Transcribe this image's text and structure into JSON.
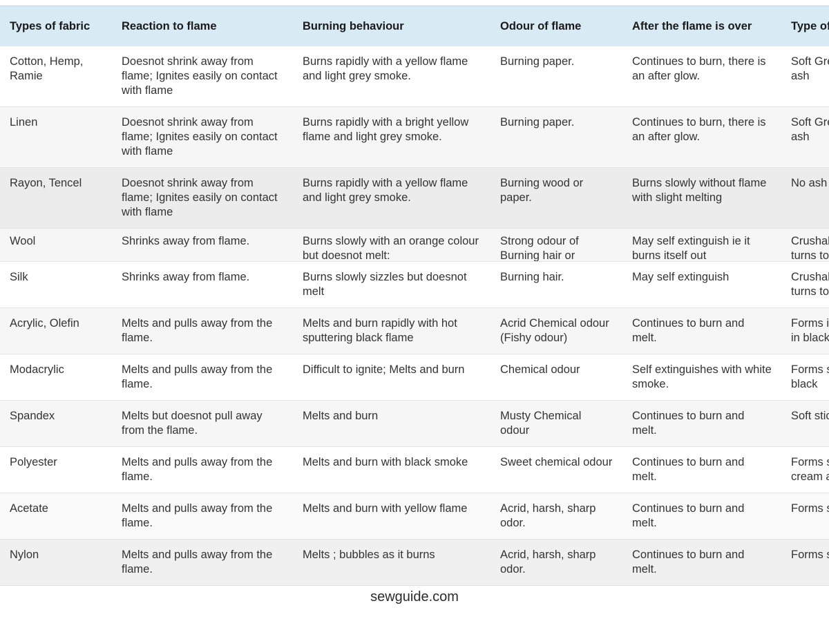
{
  "page": {
    "footer": "sewguide.com"
  },
  "colors": {
    "header_bg": "#d8eaf4",
    "header_text": "#1a1a1a",
    "body_text": "#333333",
    "row_border": "#e4e4e4",
    "stripe_light": "#f6f6f6",
    "stripe_grey": "#ececec"
  },
  "table": {
    "columns": [
      "Types of fabric",
      "Reaction to flame",
      "Burning behaviour",
      "Odour of flame",
      "After the flame is over",
      "Type of Ash"
    ],
    "rows": [
      {
        "tone": "white",
        "clipped": false,
        "cells": [
          "Cotton, Hemp, Ramie",
          "Doesnot shrink away from flame; Ignites easily on contact with flame",
          "Burns rapidly with a yellow flame and light grey smoke.",
          "Burning paper.",
          "Continues to burn, there is an after glow.",
          "Soft Grey powdery smooth ash"
        ]
      },
      {
        "tone": "light",
        "clipped": false,
        "cells": [
          "Linen",
          "Doesnot shrink away from flame; Ignites easily on contact with flame",
          "Burns rapidly with a bright yellow flame and light grey smoke.",
          "Burning paper.",
          "Continues to burn, there is an after glow.",
          "Soft Grey powdery smooth ash"
        ]
      },
      {
        "tone": "grey",
        "clipped": false,
        "cells": [
          "Rayon, Tencel",
          "Doesnot shrink away from flame; Ignites easily on contact with flame",
          "Burns rapidly with a yellow flame and light grey smoke.",
          "Burning wood or paper.",
          "Burns slowly without flame with slight melting",
          "No ash"
        ]
      },
      {
        "tone": "light",
        "clipped": true,
        "cells": [
          "Wool",
          "Shrinks away from flame.",
          "Burns slowly with an orange colour but doesnot melt:",
          "Strong odour of Burning hair or",
          "May self extinguish ie it burns itself out",
          "Crushable black bead that turns to ash."
        ]
      },
      {
        "tone": "white",
        "clipped": false,
        "cells": [
          "Silk",
          "Shrinks away from flame.",
          "Burns slowly sizzles but doesnot melt",
          "Burning hair.",
          "May self extinguish",
          "Crushable black bead that turns to ash."
        ]
      },
      {
        "tone": "light",
        "clipped": false,
        "cells": [
          "Acrylic, Olefin",
          "Melts and pulls away from the flame.",
          "Melts and burn rapidly with hot sputtering black flame",
          "Acrid Chemical odour (Fishy odour)",
          "Continues to burn and melt.",
          "Forms irregular small beads in black /tan"
        ]
      },
      {
        "tone": "white",
        "clipped": false,
        "cells": [
          "Modacrylic",
          "Melts and pulls away from the flame.",
          "Difficult to ignite; Melts and burn",
          "Chemical odour",
          "Self extinguishes with white smoke.",
          "Forms small hard beads in black"
        ]
      },
      {
        "tone": "light",
        "clipped": false,
        "cells": [
          "Spandex",
          "Melts but doesnot pull away from the flame.",
          "Melts and burn",
          "Musty Chemical odour",
          "Continues to burn and melt.",
          "Soft sticky black ash."
        ]
      },
      {
        "tone": "white",
        "clipped": false,
        "cells": [
          "Polyester",
          "Melts and pulls away from the flame.",
          "Melts and burn with black smoke",
          "Sweet chemical odour",
          "Continues to burn and melt.",
          "Forms small hard beads in cream and later tan colour"
        ]
      },
      {
        "tone": "faint",
        "clipped": false,
        "cells": [
          "Acetate",
          "Melts and pulls away from the flame.",
          "Melts and burn with yellow flame",
          "Acrid, harsh, sharp odor.",
          "Continues to burn and melt.",
          "Forms small beads"
        ]
      },
      {
        "tone": "mid",
        "clipped": false,
        "cells": [
          "Nylon",
          "Melts and pulls away from the flame.",
          "Melts ; bubbles as it burns",
          "Acrid, harsh, sharp odor.",
          "Continues to burn and melt.",
          "Forms small beads"
        ]
      }
    ]
  }
}
